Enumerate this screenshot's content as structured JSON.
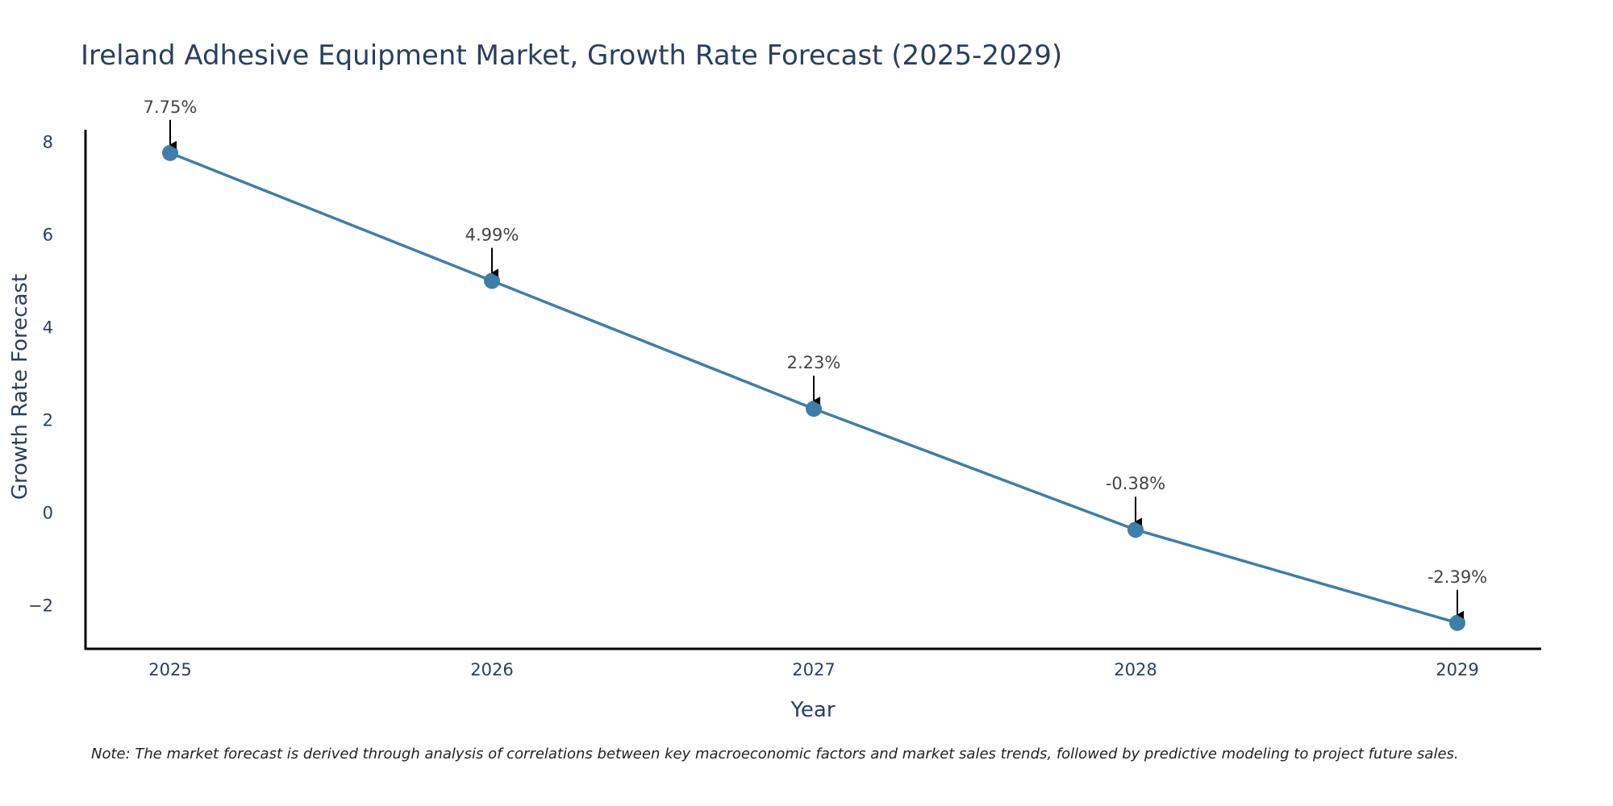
{
  "chart_data": {
    "type": "line",
    "title": "Ireland Adhesive Equipment Market, Growth Rate Forecast (2025-2029)",
    "xlabel": "Year",
    "ylabel": "Growth Rate Forecast",
    "categories": [
      "2025",
      "2026",
      "2027",
      "2028",
      "2029"
    ],
    "series": [
      {
        "name": "Growth Rate Forecast",
        "values": [
          7.75,
          4.99,
          2.23,
          -0.38,
          -2.39
        ]
      }
    ],
    "annotations": [
      "7.75%",
      "4.99%",
      "2.23%",
      "-0.38%",
      "-2.39%"
    ],
    "y_ticks": [
      8,
      6,
      4,
      2,
      0,
      -2
    ],
    "y_tick_labels": [
      "8",
      "6",
      "4",
      "2",
      "0",
      "−2"
    ],
    "ylim": [
      -2.95,
      8.25
    ],
    "grid": false,
    "line_color": "#3f7ea9",
    "note": "Note: The market forecast is derived through analysis of correlations between key macroeconomic factors and market sales trends, followed by predictive modeling to project future sales."
  }
}
